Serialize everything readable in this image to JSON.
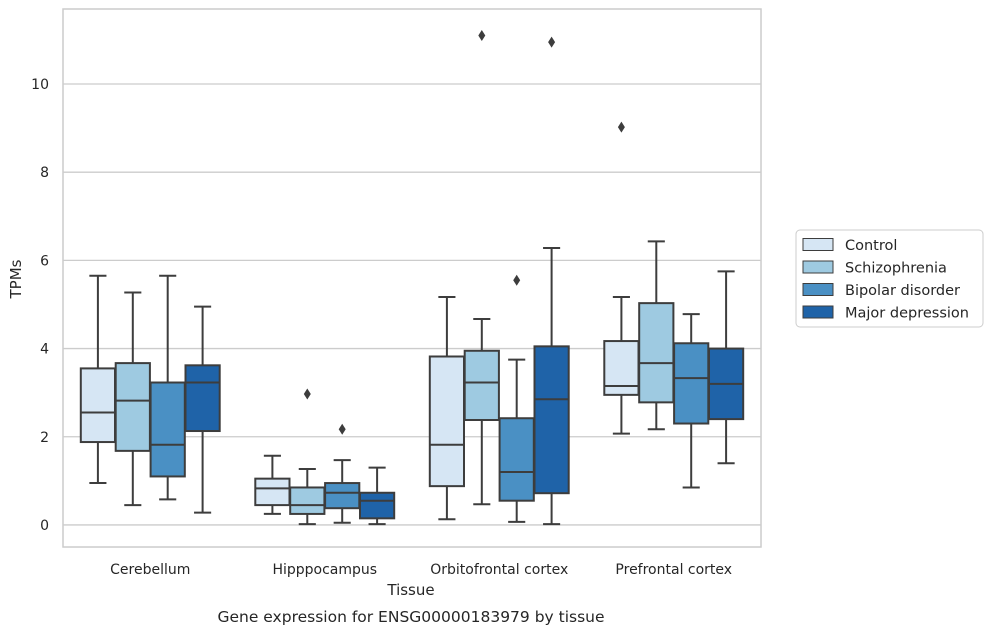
{
  "chart_data": {
    "type": "box",
    "xlabel": "Tissue",
    "ylabel": "TPMs",
    "caption": "Gene expression for ENSG00000183979 by tissue",
    "ylim": [
      -0.5,
      11.7
    ],
    "yticks": [
      0,
      2,
      4,
      6,
      8,
      10
    ],
    "grid": true,
    "legend_position": "right",
    "categories": [
      "Cerebellum",
      "Hipppocampus",
      "Orbitofrontal cortex",
      "Prefrontal cortex"
    ],
    "series": [
      {
        "name": "Control",
        "color": "#d6e6f4",
        "boxes": [
          {
            "whislo": 0.95,
            "q1": 1.88,
            "med": 2.55,
            "q3": 3.55,
            "whishi": 5.65,
            "fliers": []
          },
          {
            "whislo": 0.25,
            "q1": 0.45,
            "med": 0.83,
            "q3": 1.05,
            "whishi": 1.57,
            "fliers": []
          },
          {
            "whislo": 0.13,
            "q1": 0.88,
            "med": 1.82,
            "q3": 3.82,
            "whishi": 5.17,
            "fliers": []
          },
          {
            "whislo": 2.07,
            "q1": 2.95,
            "med": 3.15,
            "q3": 4.17,
            "whishi": 5.17,
            "fliers": [
              9.02
            ]
          }
        ]
      },
      {
        "name": "Schizophrenia",
        "color": "#9ecae1",
        "boxes": [
          {
            "whislo": 0.45,
            "q1": 1.68,
            "med": 2.82,
            "q3": 3.67,
            "whishi": 5.27,
            "fliers": []
          },
          {
            "whislo": 0.02,
            "q1": 0.25,
            "med": 0.45,
            "q3": 0.85,
            "whishi": 1.27,
            "fliers": [
              2.97
            ]
          },
          {
            "whislo": 0.47,
            "q1": 2.38,
            "med": 3.23,
            "q3": 3.95,
            "whishi": 4.67,
            "fliers": [
              11.1
            ]
          },
          {
            "whislo": 2.17,
            "q1": 2.78,
            "med": 3.67,
            "q3": 5.03,
            "whishi": 6.43,
            "fliers": []
          }
        ]
      },
      {
        "name": "Bipolar disorder",
        "color": "#4a90c4",
        "boxes": [
          {
            "whislo": 0.58,
            "q1": 1.1,
            "med": 1.82,
            "q3": 3.23,
            "whishi": 5.65,
            "fliers": []
          },
          {
            "whislo": 0.05,
            "q1": 0.38,
            "med": 0.73,
            "q3": 0.95,
            "whishi": 1.47,
            "fliers": [
              2.17
            ]
          },
          {
            "whislo": 0.07,
            "q1": 0.55,
            "med": 1.2,
            "q3": 2.42,
            "whishi": 3.75,
            "fliers": [
              5.55
            ]
          },
          {
            "whislo": 0.85,
            "q1": 2.3,
            "med": 3.33,
            "q3": 4.12,
            "whishi": 4.78,
            "fliers": []
          }
        ]
      },
      {
        "name": "Major depression",
        "color": "#1f63a8",
        "boxes": [
          {
            "whislo": 0.28,
            "q1": 2.13,
            "med": 3.23,
            "q3": 3.62,
            "whishi": 4.95,
            "fliers": []
          },
          {
            "whislo": 0.02,
            "q1": 0.15,
            "med": 0.55,
            "q3": 0.73,
            "whishi": 1.3,
            "fliers": []
          },
          {
            "whislo": 0.02,
            "q1": 0.72,
            "med": 2.85,
            "q3": 4.05,
            "whishi": 6.28,
            "fliers": [
              10.95
            ]
          },
          {
            "whislo": 1.4,
            "q1": 2.4,
            "med": 3.2,
            "q3": 4.0,
            "whishi": 5.75,
            "fliers": []
          }
        ]
      }
    ]
  }
}
